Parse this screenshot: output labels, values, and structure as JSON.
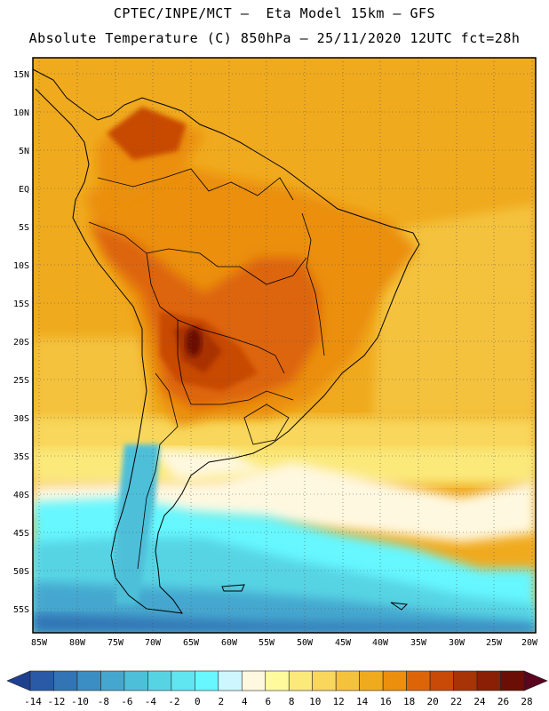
{
  "title_line1": "CPTEC/INPE/MCT –  Eta Model 15km – GFS",
  "title_line2": "Absolute Temperature (C) 850hPa – 25/11/2020 12UTC fct=28h",
  "map": {
    "lat_labels": [
      "15N",
      "10N",
      "5N",
      "EQ",
      "5S",
      "10S",
      "15S",
      "20S",
      "25S",
      "30S",
      "35S",
      "40S",
      "45S",
      "50S",
      "55S"
    ],
    "lon_labels": [
      "85W",
      "80W",
      "75W",
      "70W",
      "65W",
      "60W",
      "55W",
      "50W",
      "45W",
      "40W",
      "35W",
      "30W",
      "25W",
      "20W"
    ],
    "grid": "dotted"
  },
  "colorbar": {
    "labels": [
      "-14",
      "-12",
      "-10",
      "-8",
      "-6",
      "-4",
      "-2",
      "0",
      "2",
      "4",
      "6",
      "8",
      "10",
      "12",
      "14",
      "16",
      "18",
      "20",
      "22",
      "24",
      "26",
      "28"
    ],
    "colors": [
      "#1f3f8f",
      "#2a5aa6",
      "#3374b5",
      "#3a8ec4",
      "#45a7cf",
      "#4ebfd8",
      "#57d4e4",
      "#5fe6f0",
      "#66f7ff",
      "#cdf6ff",
      "#fff8e0",
      "#fffb9c",
      "#fbe97a",
      "#f8d75c",
      "#f4c23c",
      "#f0aa1e",
      "#eb8f0c",
      "#dd6508",
      "#c84a06",
      "#a83306",
      "#8a1f06",
      "#6b0f06",
      "#5a0420"
    ]
  }
}
